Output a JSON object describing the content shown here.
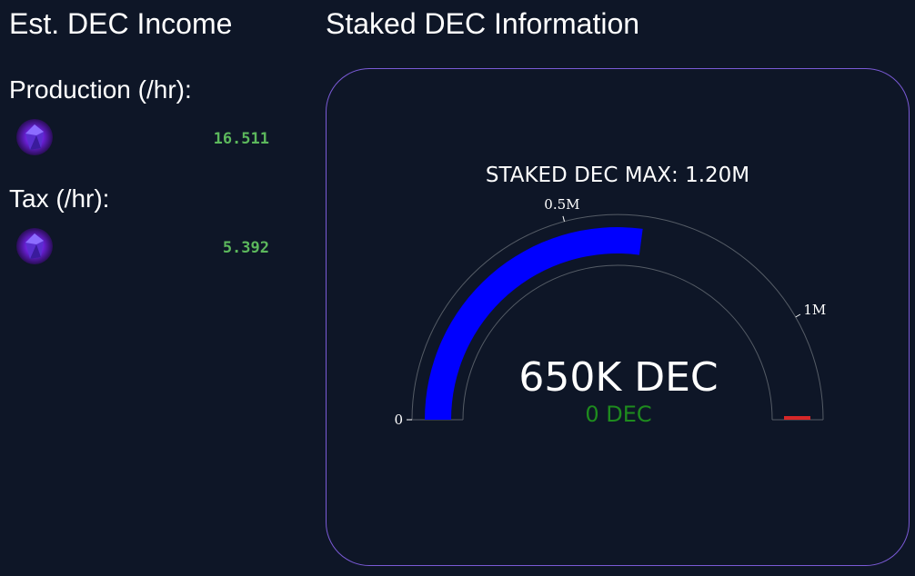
{
  "income": {
    "title": "Est. DEC Income",
    "production_label": "Production (/hr):",
    "production_value": "16.511",
    "tax_label": "Tax (/hr):",
    "tax_value": "5.392",
    "icon": "dec-crystal-icon"
  },
  "staked": {
    "title": "Staked DEC Information",
    "gauge_title": "STAKED DEC MAX: 1.20M",
    "value_text": "650K DEC",
    "delta_text": "0 DEC",
    "tick_labels": [
      "0",
      "0.5M",
      "1M"
    ],
    "gauge_value": 650000,
    "gauge_max": 1200000,
    "threshold_value": 1200000,
    "colors": {
      "bar": "#0000ff",
      "threshold": "#d62728",
      "delta": "#1e8b1e",
      "border": "#7a5ad6"
    }
  }
}
